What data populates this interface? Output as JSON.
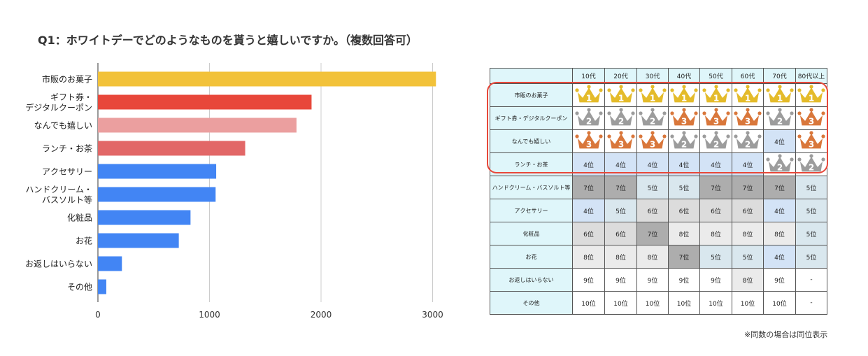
{
  "question": "Q1：ホワイトデーでどのようなものを貰うと嬉しいですか。（複数回答可）",
  "chart_data": {
    "type": "bar",
    "orientation": "horizontal",
    "categories": [
      [
        "市販のお菓子"
      ],
      [
        "ギフト券・",
        "デジタルクーポン"
      ],
      [
        "なんでも嬉しい"
      ],
      [
        "ランチ・お茶"
      ],
      [
        "アクセサリー"
      ],
      [
        "ハンドクリーム・",
        "バスソルト等"
      ],
      [
        "化粧品"
      ],
      [
        "お花"
      ],
      [
        "お返しはいらない"
      ],
      [
        "その他"
      ]
    ],
    "values": [
      3030,
      1915,
      1780,
      1320,
      1060,
      1055,
      830,
      725,
      215,
      75
    ],
    "colors": [
      "#f2c23a",
      "#e8473a",
      "#eb9f9f",
      "#e26767",
      "#4285f4",
      "#4285f4",
      "#4285f4",
      "#4285f4",
      "#4285f4",
      "#4285f4"
    ],
    "xlim": [
      0,
      3100
    ],
    "xticks": [
      "0",
      "1000",
      "2000",
      "3000"
    ],
    "grid": true
  },
  "ranking_table": {
    "age_groups": [
      "10代",
      "20代",
      "30代",
      "40代",
      "50代",
      "60代",
      "70代",
      "80代以上"
    ],
    "rows": [
      {
        "label": "市販のお菓子",
        "ranks": [
          1,
          1,
          1,
          1,
          1,
          1,
          1,
          1
        ]
      },
      {
        "label": "ギフト券・デジタルクーポン",
        "ranks": [
          2,
          2,
          2,
          3,
          3,
          3,
          2,
          3
        ]
      },
      {
        "label": "なんでも嬉しい",
        "ranks": [
          3,
          3,
          3,
          2,
          2,
          2,
          4,
          3
        ]
      },
      {
        "label": "ランチ・お茶",
        "ranks": [
          4,
          4,
          4,
          4,
          4,
          4,
          2,
          2
        ]
      },
      {
        "label": "ハンドクリーム・バスソルト等",
        "ranks": [
          7,
          7,
          5,
          5,
          7,
          7,
          7,
          5
        ]
      },
      {
        "label": "アクセサリー",
        "ranks": [
          4,
          5,
          6,
          6,
          6,
          6,
          4,
          5
        ]
      },
      {
        "label": "化粧品",
        "ranks": [
          6,
          6,
          7,
          8,
          8,
          8,
          8,
          5
        ]
      },
      {
        "label": "お花",
        "ranks": [
          8,
          8,
          8,
          7,
          5,
          5,
          4,
          5
        ]
      },
      {
        "label": "お返しはいらない",
        "ranks": [
          9,
          9,
          9,
          9,
          9,
          8,
          9,
          "-"
        ]
      },
      {
        "label": "その他",
        "ranks": [
          10,
          10,
          10,
          10,
          10,
          10,
          10,
          "-"
        ]
      }
    ],
    "rank_suffix": "位",
    "crown_colors": {
      "1": "#e4bb2a",
      "2": "#9c9c9c",
      "3": "#d9773b"
    }
  },
  "footnote": "※同数の場合は同位表示"
}
